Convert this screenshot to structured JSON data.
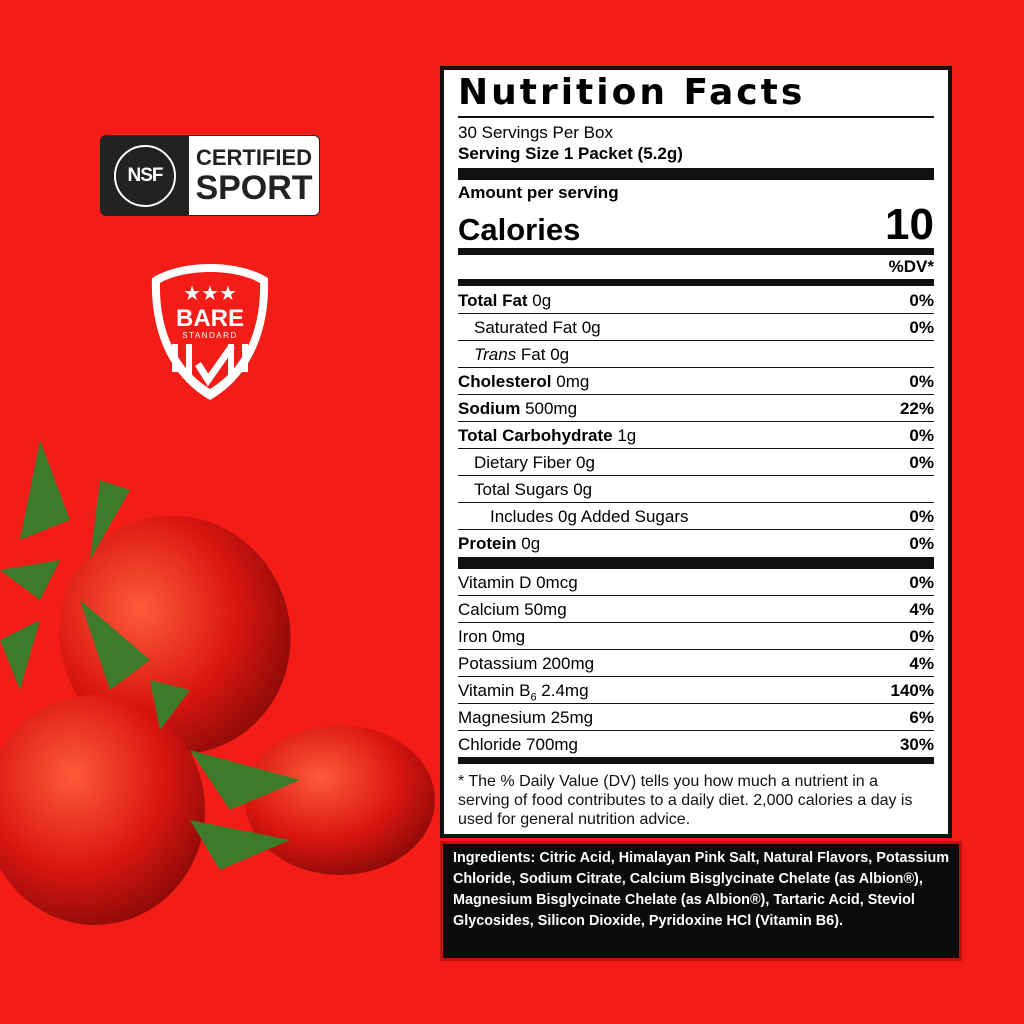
{
  "badges": {
    "nsf": {
      "logo_text": "NSF",
      "line1": "CERTIFIED",
      "line2": "SPORT"
    },
    "bare": {
      "line1": "BARE",
      "line2": "STANDARD"
    }
  },
  "label": {
    "title": "Nutrition Facts",
    "servings": "30 Servings Per Box",
    "serving_size": "Serving Size 1 Packet (5.2g)",
    "amount_per_serving": "Amount per serving",
    "calories_label": "Calories",
    "calories_value": "10",
    "dv_header": "%DV*",
    "nutrients": [
      {
        "name": "Total Fat",
        "amount": " 0g",
        "dv": "0%",
        "bold": true,
        "indent": 0
      },
      {
        "name": "Saturated Fat 0g",
        "amount": "",
        "dv": "0%",
        "bold": false,
        "indent": 1
      },
      {
        "name": "Trans",
        "amount": " Fat 0g",
        "dv": "",
        "bold": false,
        "italic": true,
        "indent": 1
      },
      {
        "name": "Cholesterol",
        "amount": " 0mg",
        "dv": "0%",
        "bold": true,
        "indent": 0
      },
      {
        "name": "Sodium",
        "amount": " 500mg",
        "dv": "22%",
        "bold": true,
        "indent": 0
      },
      {
        "name": "Total Carbohydrate",
        "amount": " 1g",
        "dv": "0%",
        "bold": true,
        "indent": 0
      },
      {
        "name": "Dietary Fiber 0g",
        "amount": "",
        "dv": "0%",
        "bold": false,
        "indent": 1
      },
      {
        "name": "Total Sugars 0g",
        "amount": "",
        "dv": "",
        "bold": false,
        "indent": 1
      },
      {
        "name": "Includes 0g Added Sugars",
        "amount": "",
        "dv": "0%",
        "bold": false,
        "indent": 2
      },
      {
        "name": "Protein",
        "amount": " 0g",
        "dv": "0%",
        "bold": true,
        "indent": 0
      }
    ],
    "vitamins": [
      {
        "name": "Vitamin D 0mcg",
        "dv": "0%"
      },
      {
        "name": "Calcium 50mg",
        "dv": "4%"
      },
      {
        "name": "Iron 0mg",
        "dv": "0%"
      },
      {
        "name": "Potassium 200mg",
        "dv": "4%"
      },
      {
        "name": "Vitamin B",
        "sub": "6",
        "rest": " 2.4mg",
        "dv": "140%"
      },
      {
        "name": "Magnesium 25mg",
        "dv": "6%"
      },
      {
        "name": "Chloride 700mg",
        "dv": "30%"
      }
    ],
    "footnote": "* The % Daily Value (DV) tells you how much a nutrient in a serving of food contributes to a daily diet. 2,000 calories a day is used for general nutrition advice."
  },
  "ingredients": "Ingredients: Citric Acid, Himalayan Pink Salt, Natural Flavors, Potassium Chloride, Sodium Citrate, Calcium Bisglycinate Chelate (as Albion®), Magnesium Bisglycinate Chelate (as Albion®), Tartaric Acid, Steviol Glycosides, Silicon Dioxide, Pyridoxine HCl (Vitamin B6).",
  "colors": {
    "background": "#f41c17",
    "label_border": "#111111",
    "ingredients_bg": "#0b0b0b"
  }
}
